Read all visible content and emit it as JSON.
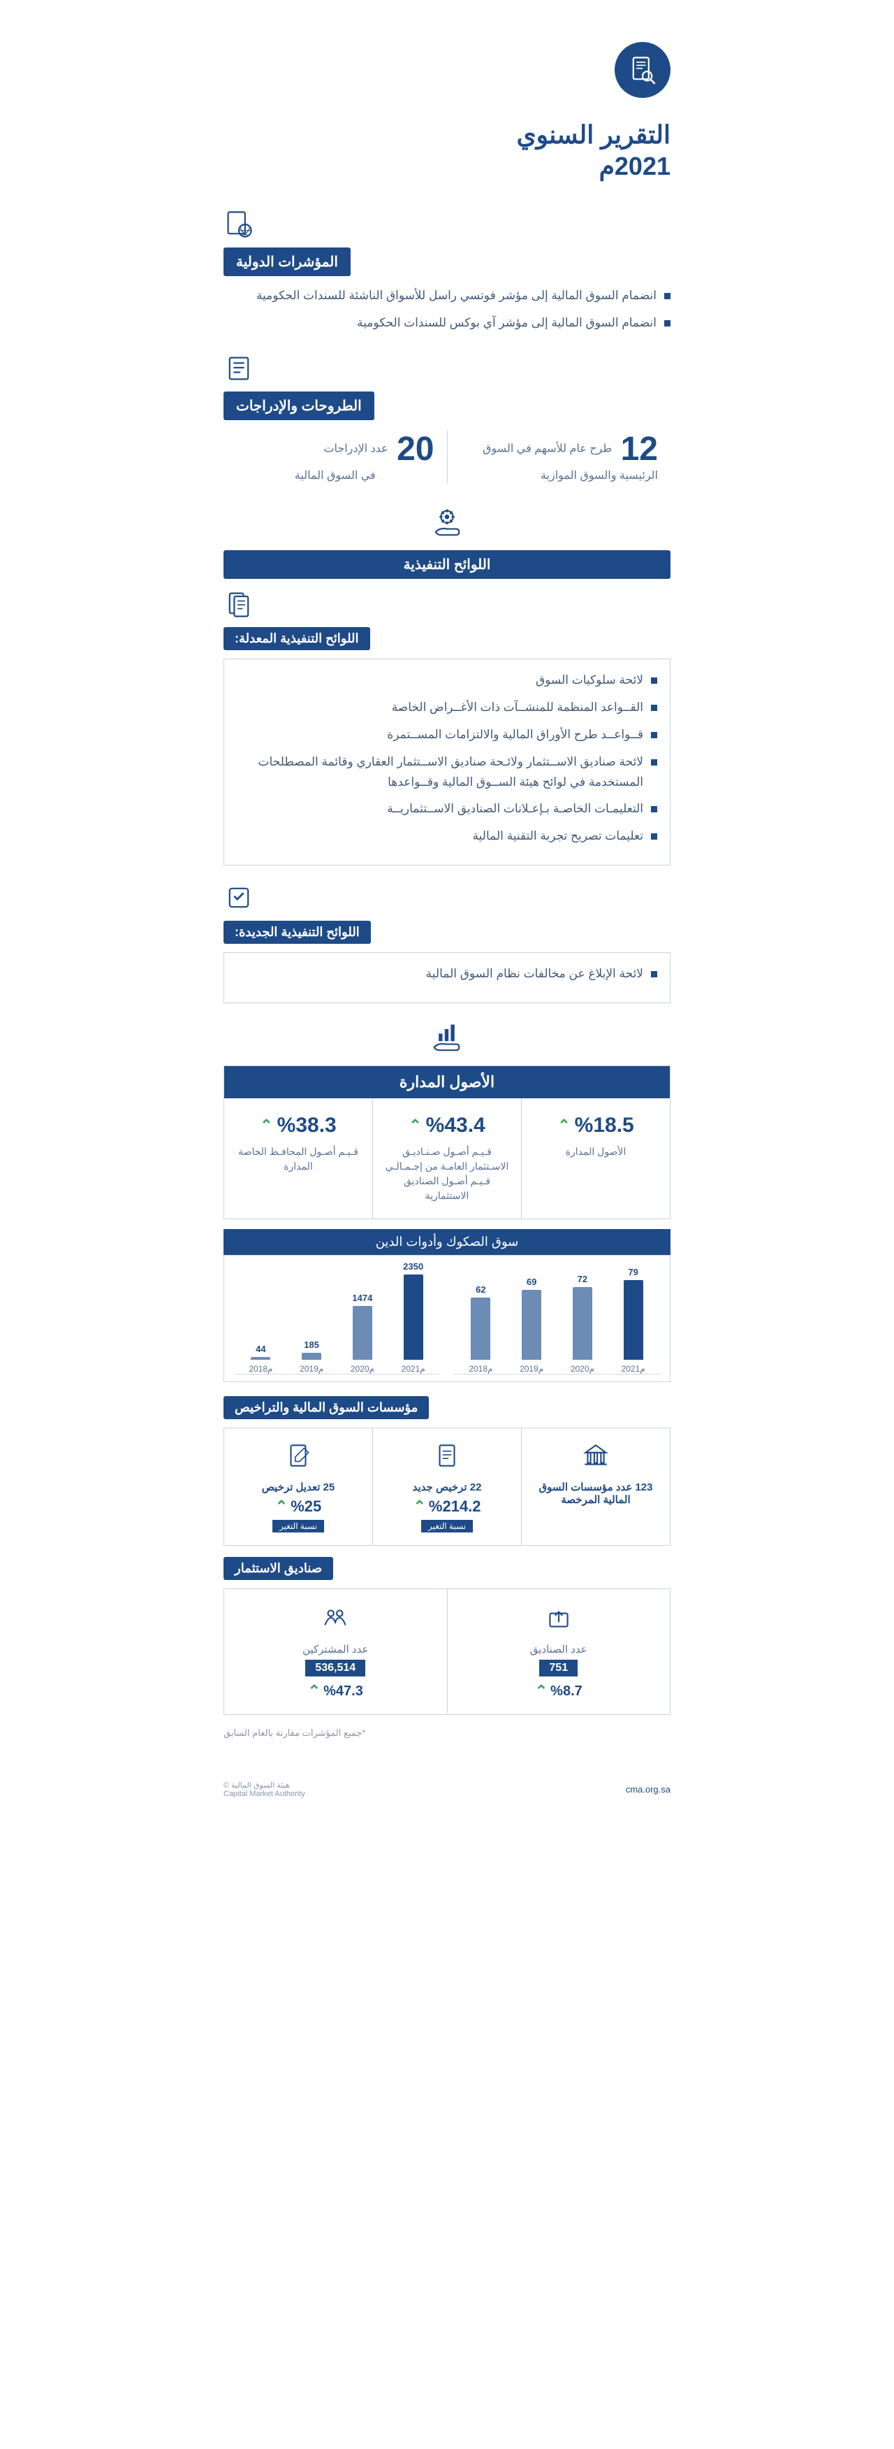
{
  "colors": {
    "primary": "#1e4b87",
    "text_muted": "#5a7296",
    "up": "#3aa65a",
    "border": "#c9d3e0",
    "bar1": "#1e4b87",
    "bar2": "#6c8bb5"
  },
  "title": {
    "line1": "التقرير السنوي",
    "year": "2021م"
  },
  "intl": {
    "header": "المؤشرات الدولية",
    "items": [
      "انضمام السوق المالية إلى مؤشر فوتسي راسل للأسواق الناشئة للسندات الحكومية",
      "انضمام السوق المالية إلى مؤشر آي بوكس للسندات الحكومية"
    ]
  },
  "offerings": {
    "header": "الطروحات والإدراجات",
    "left": {
      "num": "12",
      "desc": "طرح عام للأسهم في السوق الرئيسية والسوق الموازية"
    },
    "right": {
      "num": "20",
      "desc_pre": "عدد الإدراجات",
      "desc_post": "في السوق المالية"
    }
  },
  "regulations": {
    "header": "اللوائح التنفيذية",
    "amended_header": "اللوائح التنفيذية المعدلة:",
    "amended_items": [
      "لائحة سلوكيات السوق",
      "القــواعد المنظمة للمنشــآت ذات الأغــراض الخاصة",
      "قــواعــد طرح الأوراق المالية والالتزامات المســتمرة",
      "لائحة صناديق الاســتثمار ولائـحة صناديق الاســتثمار العقاري وقائمة المصطلحات المستخدمة في لوائح هيئة الســوق المالية وقــواعدها",
      "التعليمـات الخاصـة بـإعـلانات الصناديق الاســتثماريــة",
      "تعليمات تصريح تجربة التقنية المالية"
    ],
    "new_header": "اللوائح التنفيذية الجديدة:",
    "new_items": [
      "لائحة الإبلاغ عن مخالفات نظام السوق المالية"
    ]
  },
  "assets": {
    "header": "الأصول المدارة",
    "items": [
      {
        "pct": "%18.5",
        "label": "الأصول المدارة"
      },
      {
        "pct": "%43.4",
        "label": "قـيـم أصـول صـنـاديـق الاسـتثمار العامـة من إجـمـالـي قـيـم أصـول الصناديق الاستثمارية"
      },
      {
        "pct": "%38.3",
        "label": "قـيـم أصـول المحافـظ الخاصة المدارة"
      }
    ]
  },
  "sukuk": {
    "header": "سوق الصكوك وأدوات الدين",
    "chart_right": {
      "years": [
        "م2018",
        "م2019",
        "م2020",
        "م2021"
      ],
      "values": [
        62,
        69,
        72,
        79
      ],
      "max": 90,
      "colors": [
        "#6c8bb5",
        "#6c8bb5",
        "#6c8bb5",
        "#1e4b87"
      ]
    },
    "chart_left": {
      "years": [
        "م2018",
        "م2019",
        "م2020",
        "م2021"
      ],
      "values": [
        44,
        185,
        1474,
        2350
      ],
      "max": 2500,
      "colors": [
        "#6c8bb5",
        "#6c8bb5",
        "#6c8bb5",
        "#1e4b87"
      ]
    }
  },
  "institutions": {
    "header": "مؤسسات السوق المالية والتراخيص",
    "cells": [
      {
        "title": "123 عدد مؤسسات السوق المالية المرخصة",
        "pct": "",
        "badge": ""
      },
      {
        "title": "22 ترخيص جديد",
        "pct": "%214.2",
        "badge": "نسبة التغير"
      },
      {
        "title": "25 تعديل ترخيص",
        "pct": "%25",
        "badge": "نسبة التغير"
      }
    ]
  },
  "funds": {
    "header": "صناديق الاستثمار",
    "cells": [
      {
        "label": "عدد الصناديق",
        "num": "751",
        "pct": "%8.7"
      },
      {
        "label": "عدد المشتركين",
        "num": "536,514",
        "pct": "%47.3"
      }
    ]
  },
  "footnote": "*جميع المؤشرات مقارنة بالعام السابق",
  "footer": {
    "url": "cma.org.sa",
    "org_ar": "هيئة السوق المالية ©",
    "org_en": "Capital Market Authority"
  }
}
